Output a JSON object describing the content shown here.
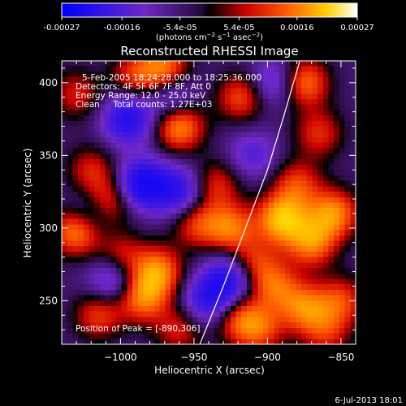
{
  "chart_data": {
    "type": "heatmap",
    "title": "Reconstructed RHESSI Image",
    "xlabel": "Heliocentric X (arcsec)",
    "ylabel": "Heliocentric Y (arcsec)",
    "xlim": [
      -1040,
      -840
    ],
    "ylim": [
      220,
      415
    ],
    "xticks": [
      -1000,
      -950,
      -900,
      -850
    ],
    "xtick_labels": [
      "−1000",
      "−950",
      "−900",
      "−850"
    ],
    "yticks": [
      250,
      300,
      350,
      400
    ],
    "ytick_labels": [
      "250",
      "300",
      "350",
      "400"
    ],
    "colorbar": {
      "min": -0.00027,
      "max": 0.00027,
      "ticks": [
        -0.00027,
        -0.00016,
        -5.4e-05,
        5.4e-05,
        0.00016,
        0.00027
      ],
      "tick_labels": [
        "-0.00027",
        "-0.00016",
        "-5.4e-05",
        "5.4e-05",
        "0.00016",
        "0.00027"
      ],
      "unit_label_parts": [
        "(photons cm",
        "−2",
        " s",
        "−1",
        " asec",
        "−2",
        ")"
      ]
    },
    "annotations": [
      "5-Feb-2005 18:24:28.000 to 18:25:36.000",
      "Detectors: 4F 5F 6F 7F 8F, Att 0",
      "Energy Range: 12.0 - 25.0 keV",
      "Clean     Total counts: 1.27E+03"
    ],
    "peak_label": "Position of Peak = [-890,306]",
    "peak": [
      -890,
      306
    ],
    "limb_points": [
      [
        -946,
        220
      ],
      [
        -930,
        260
      ],
      [
        -915,
        300
      ],
      [
        -900,
        340
      ],
      [
        -888,
        380
      ],
      [
        -878,
        415
      ]
    ],
    "sources": [
      {
        "x": -995,
        "y": 375,
        "v": -0.8
      },
      {
        "x": -985,
        "y": 330,
        "v": -1.0
      },
      {
        "x": -960,
        "y": 325,
        "v": -0.7
      },
      {
        "x": -1020,
        "y": 310,
        "v": -0.5
      },
      {
        "x": -1005,
        "y": 265,
        "v": -0.6
      },
      {
        "x": -940,
        "y": 250,
        "v": -0.7
      },
      {
        "x": -925,
        "y": 265,
        "v": -0.8
      },
      {
        "x": -895,
        "y": 400,
        "v": -0.5
      },
      {
        "x": -965,
        "y": 390,
        "v": -0.5
      },
      {
        "x": -910,
        "y": 350,
        "v": -0.4
      },
      {
        "x": -970,
        "y": 410,
        "v": 0.75
      },
      {
        "x": -960,
        "y": 370,
        "v": 0.85
      },
      {
        "x": -990,
        "y": 405,
        "v": 0.5
      },
      {
        "x": -1030,
        "y": 392,
        "v": 0.45
      },
      {
        "x": -918,
        "y": 390,
        "v": 0.6
      },
      {
        "x": -875,
        "y": 400,
        "v": 0.75
      },
      {
        "x": -865,
        "y": 365,
        "v": 0.5
      },
      {
        "x": -855,
        "y": 310,
        "v": 0.8
      },
      {
        "x": -870,
        "y": 290,
        "v": 0.75
      },
      {
        "x": -890,
        "y": 306,
        "v": 1.0
      },
      {
        "x": -880,
        "y": 330,
        "v": 0.55
      },
      {
        "x": -935,
        "y": 330,
        "v": 0.5
      },
      {
        "x": -925,
        "y": 300,
        "v": 0.7
      },
      {
        "x": -948,
        "y": 303,
        "v": 0.55
      },
      {
        "x": -1030,
        "y": 298,
        "v": 0.85
      },
      {
        "x": -1008,
        "y": 318,
        "v": 0.65
      },
      {
        "x": -1020,
        "y": 340,
        "v": 0.45
      },
      {
        "x": -1000,
        "y": 280,
        "v": 0.5
      },
      {
        "x": -975,
        "y": 270,
        "v": 0.8
      },
      {
        "x": -985,
        "y": 252,
        "v": 0.75
      },
      {
        "x": -1015,
        "y": 240,
        "v": 0.55
      },
      {
        "x": -960,
        "y": 230,
        "v": 0.45
      },
      {
        "x": -910,
        "y": 275,
        "v": 0.55
      },
      {
        "x": -895,
        "y": 260,
        "v": 0.6
      },
      {
        "x": -905,
        "y": 230,
        "v": 0.55
      },
      {
        "x": -875,
        "y": 245,
        "v": 0.7
      },
      {
        "x": -850,
        "y": 250,
        "v": 0.55
      },
      {
        "x": -920,
        "y": 238,
        "v": 0.6
      },
      {
        "x": -860,
        "y": 228,
        "v": 0.45
      }
    ]
  },
  "footer": {
    "timestamp": "6-Jul-2013 18:01"
  }
}
